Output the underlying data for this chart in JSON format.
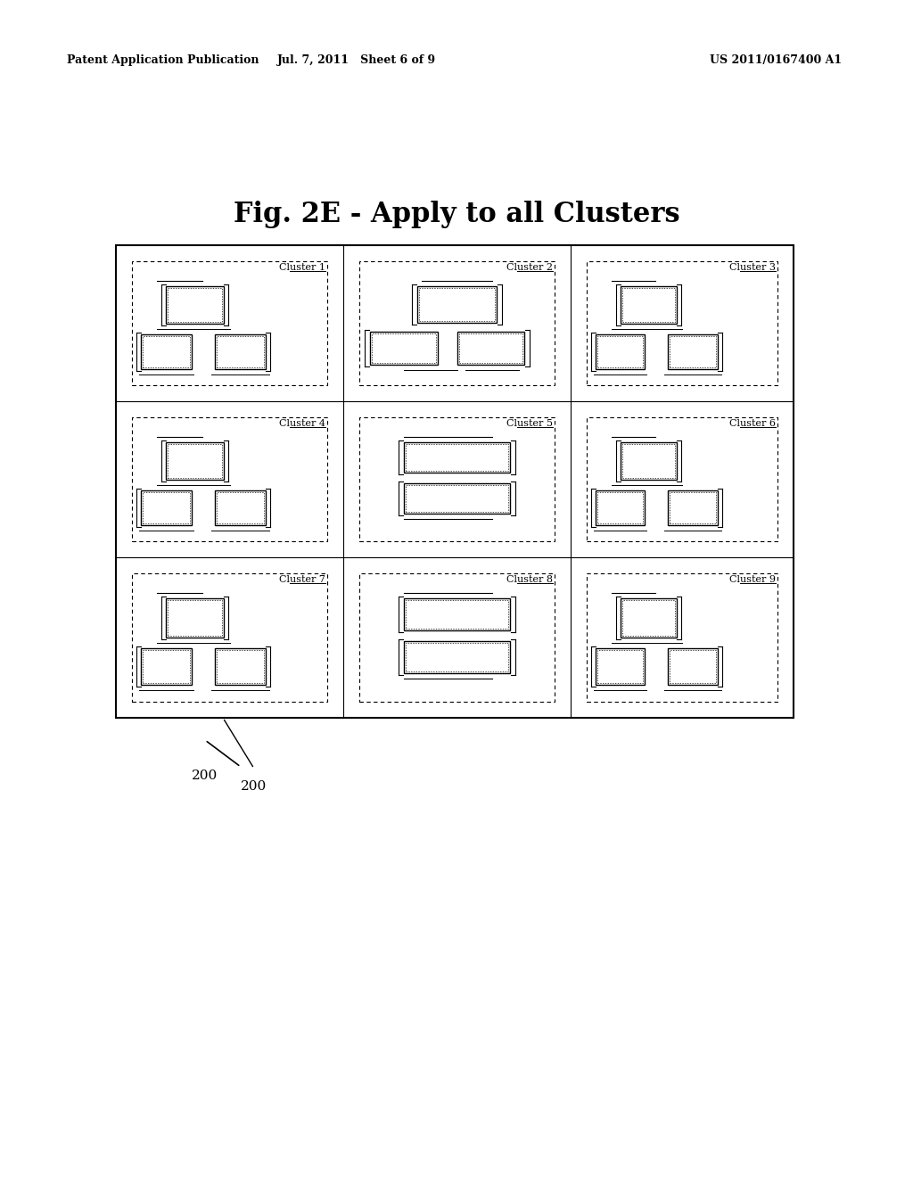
{
  "title": "Fig. 2E - Apply to all Clusters",
  "header_left": "Patent Application Publication",
  "header_mid": "Jul. 7, 2011   Sheet 6 of 9",
  "header_right": "US 2011/0167400 A1",
  "label_200": "200",
  "background": "#ffffff",
  "clusters": [
    {
      "name": "Cluster 1",
      "col": 0,
      "row": 0,
      "type": "A"
    },
    {
      "name": "Cluster 2",
      "col": 1,
      "row": 0,
      "type": "B"
    },
    {
      "name": "Cluster 3",
      "col": 2,
      "row": 0,
      "type": "A"
    },
    {
      "name": "Cluster 4",
      "col": 0,
      "row": 1,
      "type": "A"
    },
    {
      "name": "Cluster 5",
      "col": 1,
      "row": 1,
      "type": "C"
    },
    {
      "name": "Cluster 6",
      "col": 2,
      "row": 1,
      "type": "A"
    },
    {
      "name": "Cluster 7",
      "col": 0,
      "row": 2,
      "type": "D"
    },
    {
      "name": "Cluster 8",
      "col": 1,
      "row": 2,
      "type": "C"
    },
    {
      "name": "Cluster 9",
      "col": 2,
      "row": 2,
      "type": "A"
    }
  ]
}
